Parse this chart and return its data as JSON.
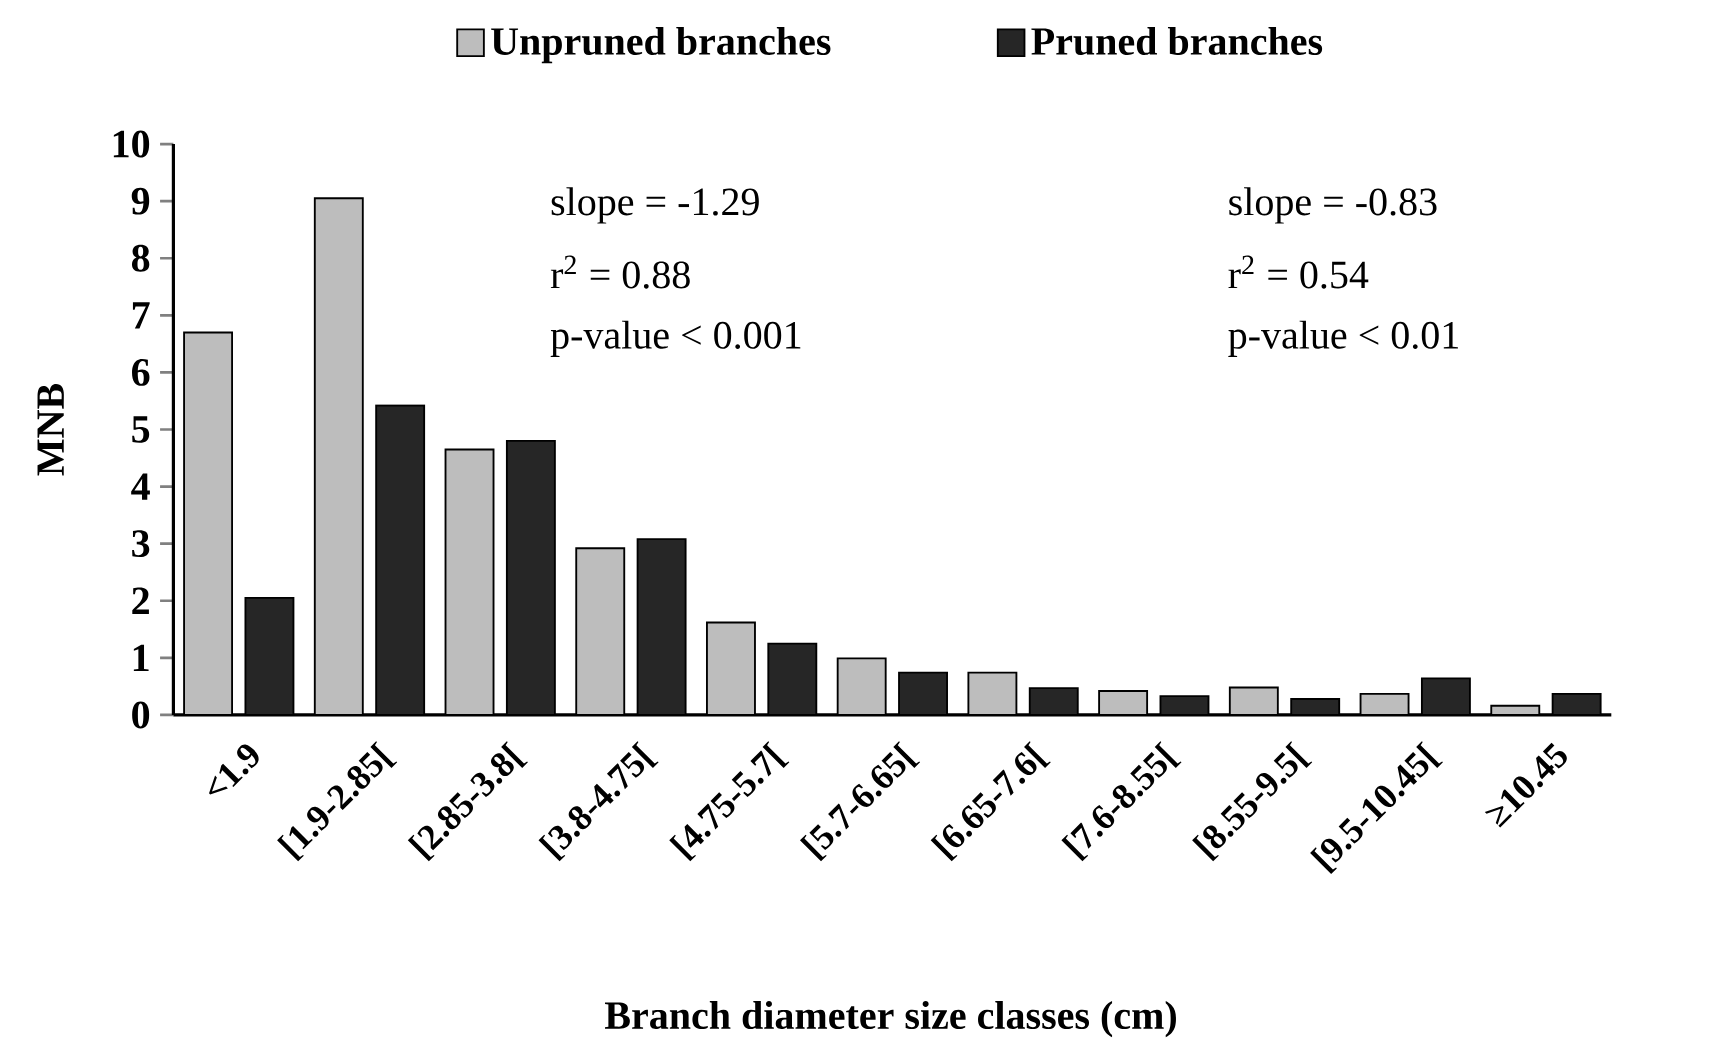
{
  "chart_data": {
    "type": "bar",
    "categories": [
      "<1.9",
      "[1.9-2.85[",
      "[2.85-3.8[",
      "[3.8-4.75[",
      "[4.75-5.7[",
      "[5.7-6.65[",
      "[6.65-7.6[",
      "[7.6-8.55[",
      "[8.55-9.5[",
      "[9.5-10.45[",
      "≥10.45"
    ],
    "series": [
      {
        "name": "Unpruned branches",
        "color": "#bdbdbd",
        "values": [
          6.7,
          9.05,
          4.65,
          2.92,
          1.62,
          0.99,
          0.74,
          0.42,
          0.48,
          0.37,
          0.16
        ]
      },
      {
        "name": "Pruned branches",
        "color": "#262626",
        "values": [
          2.05,
          5.42,
          4.8,
          3.08,
          1.25,
          0.74,
          0.47,
          0.33,
          0.28,
          0.64,
          0.37
        ]
      }
    ],
    "xlabel": "Branch diameter size classes (cm)",
    "ylabel": "MNB",
    "ylim": [
      0,
      10
    ],
    "yticks": [
      0,
      1,
      2,
      3,
      4,
      5,
      6,
      7,
      8,
      9,
      10
    ],
    "legend": "top",
    "annotations": [
      "slope = -1.29",
      "r$^{2}$ = 0.88",
      "p-value < 0.001",
      "slope = -0.83",
      "r$^{2}$ = 0.54",
      "p-value < 0.01"
    ]
  }
}
